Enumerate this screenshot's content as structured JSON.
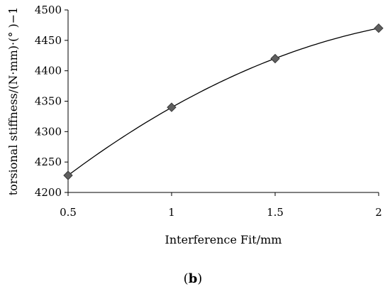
{
  "chart_data": {
    "type": "scatter",
    "x": [
      0.5,
      1,
      1.5,
      2
    ],
    "y": [
      4228,
      4340,
      4420,
      4470
    ],
    "marker": "diamond",
    "trendline": "polynomial",
    "xlim": [
      0.5,
      2
    ],
    "ylim": [
      4200,
      4500
    ],
    "x_ticks": [
      "0.5",
      "1",
      "1.5",
      "2"
    ],
    "y_ticks": [
      "4200",
      "4250",
      "4300",
      "4350",
      "4400",
      "4450",
      "4500"
    ],
    "xlabel": "Interference Fit/mm",
    "ylabel": "torsional stiffness/(N·mm)·(°  )−1",
    "grid": false,
    "panel_label": {
      "open": "(",
      "letter": "b",
      "close": ")"
    },
    "colors": {
      "marker_fill": "#5f5f5f",
      "marker_stroke": "#3a3a3a",
      "line": "#000000",
      "axis": "#000000"
    }
  }
}
